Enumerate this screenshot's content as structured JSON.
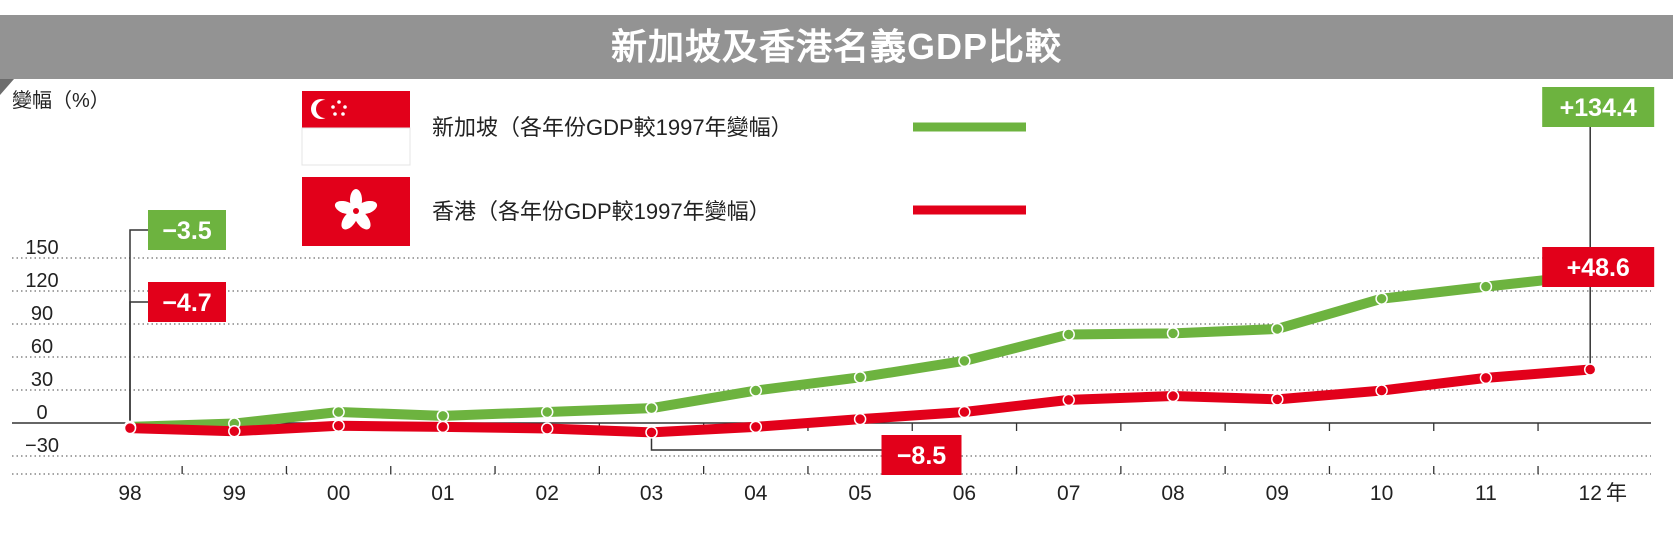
{
  "chart_data": {
    "type": "line",
    "title": "新加坡及香港名義GDP比較",
    "ylabel": "變幅（%）",
    "x_unit": "年",
    "x": [
      "98",
      "99",
      "00",
      "01",
      "02",
      "03",
      "04",
      "05",
      "06",
      "07",
      "08",
      "09",
      "10",
      "11",
      "12"
    ],
    "y_ticks": [
      "150",
      "120",
      "90",
      "60",
      "30",
      "0",
      "−30"
    ],
    "ylim": [
      -30,
      150
    ],
    "grid": "dotted horizontal",
    "legend_position": "top-left",
    "series": [
      {
        "name": "新加坡（各年份GDP較1997年變幅）",
        "color": "#6db33f",
        "values": [
          -3.5,
          -0.5,
          10,
          6.5,
          10,
          13.5,
          29.5,
          41.5,
          56.5,
          80.5,
          81.5,
          85.5,
          113,
          124,
          134.4
        ]
      },
      {
        "name": "香港（各年份GDP較1997年變幅）",
        "color": "#e2001a",
        "values": [
          -4.7,
          -7.5,
          -2.5,
          -3.5,
          -5,
          -8.5,
          -3.5,
          3.5,
          10,
          21,
          24.5,
          21.5,
          29.5,
          41,
          48.6
        ]
      }
    ],
    "annotations": [
      {
        "text": "−3.5",
        "series": 0,
        "index": 0
      },
      {
        "text": "−4.7",
        "series": 1,
        "index": 0
      },
      {
        "text": "−8.5",
        "series": 1,
        "index": 5
      },
      {
        "text": "+134.4",
        "series": 0,
        "index": 14
      },
      {
        "text": "+48.6",
        "series": 1,
        "index": 14
      }
    ]
  }
}
